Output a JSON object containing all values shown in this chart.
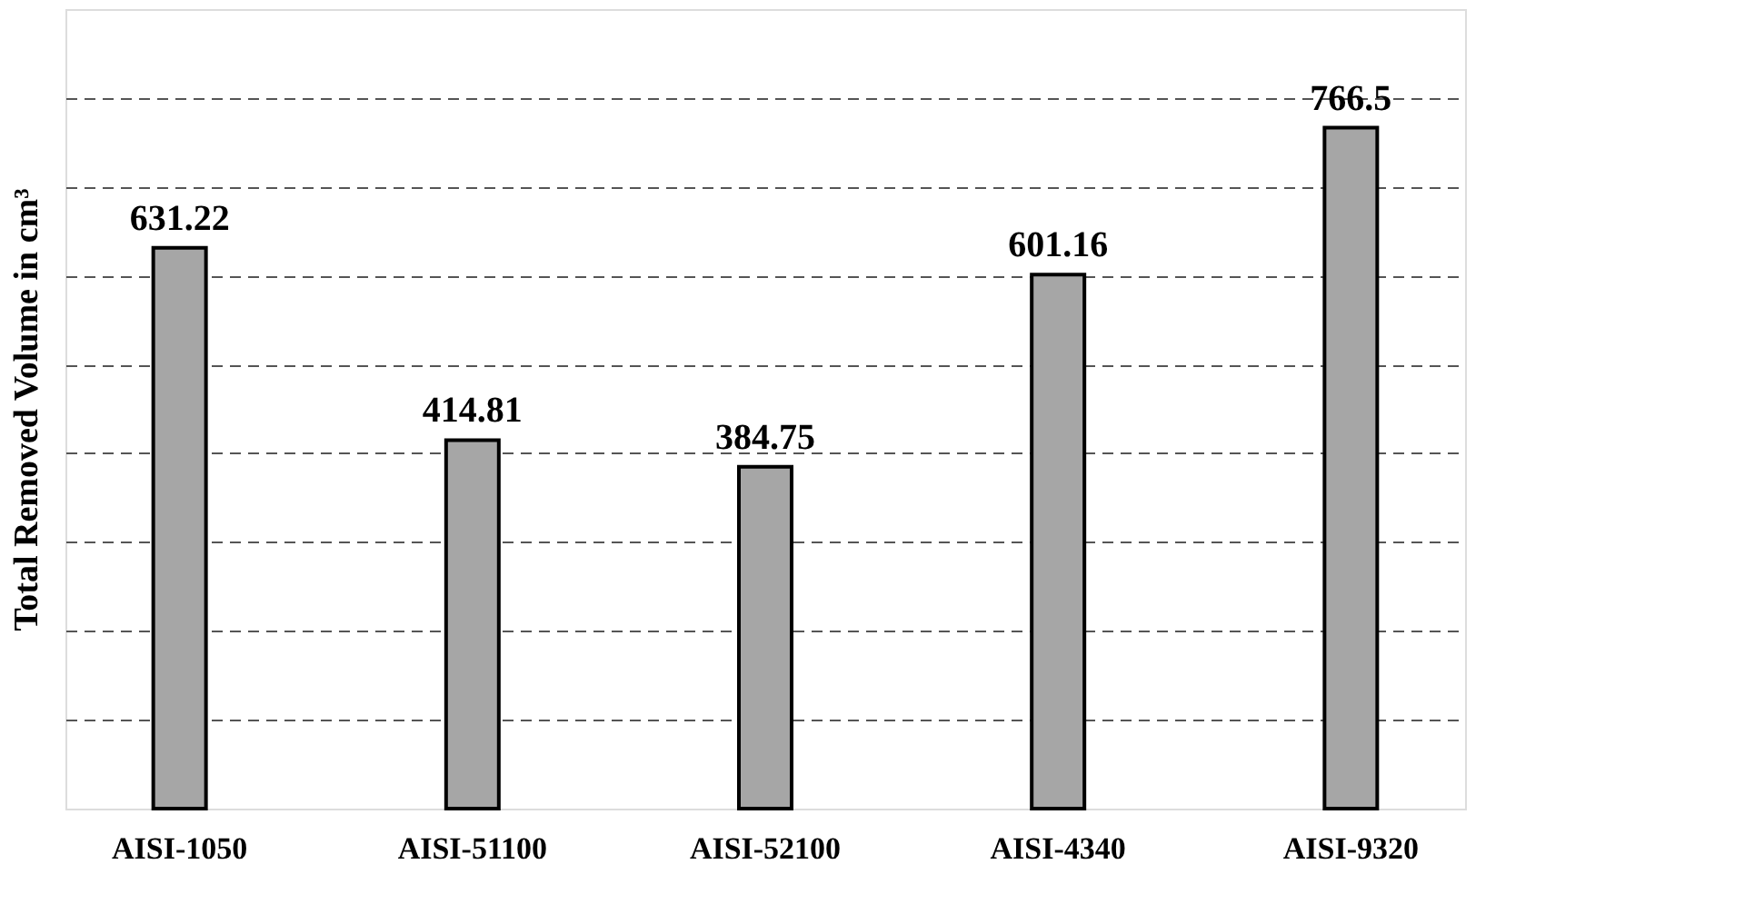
{
  "chart_data": {
    "type": "bar",
    "ylabel": "Total Removed Volume in cm³",
    "categories": [
      "AISI-1050",
      "AISI-51100",
      "AISI-52100",
      "AISI-4340",
      "AISI-9320"
    ],
    "values": [
      631.22,
      414.81,
      384.75,
      601.16,
      766.5
    ],
    "color": "#a6a6a6",
    "data_labels": true,
    "ylim": [
      0,
      900
    ],
    "yticks": [
      {
        "value": 100,
        "label": null
      },
      {
        "value": 200,
        "label": null
      },
      {
        "value": 300,
        "label": null
      },
      {
        "value": 400,
        "label": null
      },
      {
        "value": 500,
        "label": null
      },
      {
        "value": 600,
        "label": null
      },
      {
        "value": 700,
        "label": null
      },
      {
        "value": 800,
        "label": null
      }
    ],
    "grid": "y",
    "tick_labels": "x"
  }
}
